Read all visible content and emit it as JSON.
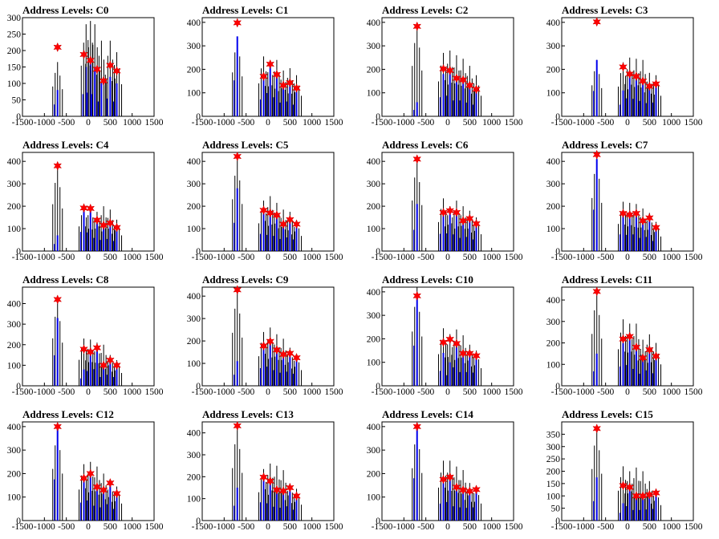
{
  "chart_data": [
    {
      "title": "Address Levels: C0",
      "type": "bar",
      "xlim": [
        -1500,
        1500
      ],
      "ylim": [
        0,
        300
      ],
      "yticks": [
        0,
        50,
        100,
        150,
        200,
        250,
        300
      ],
      "peaks": [
        [
          -700,
          210
        ],
        [
          -100,
          188
        ],
        [
          50,
          170
        ],
        [
          200,
          143
        ],
        [
          350,
          108
        ],
        [
          500,
          155
        ],
        [
          650,
          138
        ]
      ],
      "spikes": [
        [
          -700,
          165,
          80
        ],
        [
          -50,
          280,
          150
        ],
        [
          50,
          290,
          160
        ],
        [
          150,
          280,
          150
        ],
        [
          300,
          230,
          100
        ],
        [
          500,
          230,
          120
        ],
        [
          650,
          195,
          100
        ]
      ]
    },
    {
      "title": "Address Levels: C1",
      "type": "bar",
      "xlim": [
        -1500,
        1500
      ],
      "ylim": [
        0,
        420
      ],
      "yticks": [
        0,
        100,
        200,
        300,
        400
      ],
      "peaks": [
        [
          -700,
          398
        ],
        [
          -100,
          170
        ],
        [
          50,
          222
        ],
        [
          200,
          178
        ],
        [
          350,
          132
        ],
        [
          500,
          143
        ],
        [
          650,
          120
        ]
      ],
      "spikes": [
        [
          -700,
          340,
          340
        ],
        [
          -100,
          255,
          160
        ],
        [
          50,
          235,
          220
        ],
        [
          200,
          240,
          180
        ],
        [
          350,
          195,
          130
        ],
        [
          500,
          205,
          140
        ],
        [
          650,
          175,
          110
        ]
      ]
    },
    {
      "title": "Address Levels: C2",
      "type": "bar",
      "xlim": [
        -1500,
        1500
      ],
      "ylim": [
        0,
        420
      ],
      "yticks": [
        0,
        100,
        200,
        300,
        400
      ],
      "peaks": [
        [
          -700,
          383
        ],
        [
          -100,
          202
        ],
        [
          50,
          195
        ],
        [
          200,
          162
        ],
        [
          350,
          155
        ],
        [
          500,
          132
        ],
        [
          650,
          115
        ]
      ],
      "spikes": [
        [
          -700,
          390,
          60
        ],
        [
          -100,
          270,
          180
        ],
        [
          50,
          280,
          195
        ],
        [
          200,
          260,
          150
        ],
        [
          350,
          245,
          150
        ],
        [
          500,
          215,
          130
        ],
        [
          650,
          175,
          110
        ]
      ]
    },
    {
      "title": "Address Levels: C3",
      "type": "bar",
      "xlim": [
        -1500,
        1500
      ],
      "ylim": [
        0,
        420
      ],
      "yticks": [
        0,
        100,
        200,
        300,
        400
      ],
      "peaks": [
        [
          -700,
          402
        ],
        [
          -100,
          210
        ],
        [
          50,
          180
        ],
        [
          200,
          170
        ],
        [
          350,
          150
        ],
        [
          500,
          128
        ],
        [
          650,
          138
        ]
      ],
      "spikes": [
        [
          -700,
          240,
          240
        ],
        [
          -100,
          230,
          110
        ],
        [
          50,
          250,
          170
        ],
        [
          200,
          245,
          165
        ],
        [
          350,
          240,
          145
        ],
        [
          500,
          185,
          125
        ],
        [
          650,
          175,
          130
        ]
      ]
    },
    {
      "title": "Address Levels: C4",
      "type": "bar",
      "xlim": [
        -1500,
        1500
      ],
      "ylim": [
        0,
        440
      ],
      "yticks": [
        0,
        100,
        200,
        300,
        400
      ],
      "peaks": [
        [
          -700,
          380
        ],
        [
          -100,
          192
        ],
        [
          50,
          190
        ],
        [
          200,
          138
        ],
        [
          350,
          115
        ],
        [
          500,
          125
        ],
        [
          650,
          105
        ]
      ],
      "spikes": [
        [
          -700,
          380,
          70
        ],
        [
          -100,
          200,
          190
        ],
        [
          50,
          200,
          185
        ],
        [
          200,
          175,
          130
        ],
        [
          350,
          200,
          110
        ],
        [
          500,
          185,
          120
        ],
        [
          650,
          140,
          100
        ]
      ]
    },
    {
      "title": "Address Levels: C5",
      "type": "bar",
      "xlim": [
        -1500,
        1500
      ],
      "ylim": [
        0,
        440
      ],
      "yticks": [
        0,
        100,
        200,
        300,
        400
      ],
      "peaks": [
        [
          -700,
          422
        ],
        [
          -100,
          182
        ],
        [
          50,
          170
        ],
        [
          200,
          160
        ],
        [
          350,
          120
        ],
        [
          500,
          140
        ],
        [
          650,
          120
        ]
      ],
      "spikes": [
        [
          -700,
          420,
          280
        ],
        [
          -100,
          225,
          170
        ],
        [
          50,
          245,
          160
        ],
        [
          200,
          215,
          150
        ],
        [
          350,
          185,
          120
        ],
        [
          500,
          175,
          135
        ],
        [
          650,
          135,
          115
        ]
      ]
    },
    {
      "title": "Address Levels: C6",
      "type": "bar",
      "xlim": [
        -1500,
        1500
      ],
      "ylim": [
        0,
        440
      ],
      "yticks": [
        0,
        100,
        200,
        300,
        400
      ],
      "peaks": [
        [
          -700,
          410
        ],
        [
          -100,
          172
        ],
        [
          50,
          180
        ],
        [
          200,
          172
        ],
        [
          350,
          135
        ],
        [
          500,
          145
        ],
        [
          650,
          122
        ]
      ],
      "spikes": [
        [
          -700,
          410,
          210
        ],
        [
          -100,
          235,
          170
        ],
        [
          50,
          200,
          175
        ],
        [
          200,
          225,
          165
        ],
        [
          350,
          200,
          130
        ],
        [
          500,
          180,
          140
        ],
        [
          650,
          150,
          115
        ]
      ]
    },
    {
      "title": "Address Levels: C7",
      "type": "bar",
      "xlim": [
        -1500,
        1500
      ],
      "ylim": [
        0,
        440
      ],
      "yticks": [
        0,
        100,
        200,
        300,
        400
      ],
      "peaks": [
        [
          -700,
          430
        ],
        [
          -100,
          168
        ],
        [
          50,
          162
        ],
        [
          200,
          168
        ],
        [
          350,
          135
        ],
        [
          500,
          148
        ],
        [
          650,
          105
        ]
      ],
      "spikes": [
        [
          -700,
          430,
          410
        ],
        [
          -100,
          220,
          165
        ],
        [
          50,
          215,
          160
        ],
        [
          200,
          210,
          165
        ],
        [
          350,
          190,
          130
        ],
        [
          500,
          170,
          140
        ],
        [
          650,
          130,
          100
        ]
      ]
    },
    {
      "title": "Address Levels: C8",
      "type": "bar",
      "xlim": [
        -1500,
        1500
      ],
      "ylim": [
        0,
        480
      ],
      "yticks": [
        0,
        100,
        200,
        300,
        400
      ],
      "peaks": [
        [
          -700,
          420
        ],
        [
          -100,
          178
        ],
        [
          50,
          165
        ],
        [
          200,
          185
        ],
        [
          350,
          100
        ],
        [
          500,
          125
        ],
        [
          650,
          100
        ]
      ],
      "spikes": [
        [
          -700,
          420,
          330
        ],
        [
          -100,
          230,
          80
        ],
        [
          50,
          225,
          160
        ],
        [
          200,
          210,
          180
        ],
        [
          350,
          200,
          95
        ],
        [
          500,
          150,
          120
        ],
        [
          650,
          125,
          95
        ]
      ]
    },
    {
      "title": "Address Levels: C9",
      "type": "bar",
      "xlim": [
        -1500,
        1500
      ],
      "ylim": [
        0,
        440
      ],
      "yticks": [
        0,
        100,
        200,
        300,
        400
      ],
      "peaks": [
        [
          -700,
          428
        ],
        [
          -100,
          178
        ],
        [
          50,
          198
        ],
        [
          200,
          160
        ],
        [
          350,
          140
        ],
        [
          500,
          145
        ],
        [
          650,
          125
        ]
      ],
      "spikes": [
        [
          -700,
          430,
          110
        ],
        [
          -100,
          240,
          175
        ],
        [
          50,
          260,
          190
        ],
        [
          200,
          230,
          155
        ],
        [
          350,
          210,
          130
        ],
        [
          500,
          170,
          140
        ],
        [
          650,
          140,
          120
        ]
      ]
    },
    {
      "title": "Address Levels: C10",
      "type": "bar",
      "xlim": [
        -1500,
        1500
      ],
      "ylim": [
        0,
        420
      ],
      "yticks": [
        0,
        100,
        200,
        300,
        400
      ],
      "peaks": [
        [
          -700,
          383
        ],
        [
          -100,
          185
        ],
        [
          50,
          198
        ],
        [
          200,
          180
        ],
        [
          350,
          138
        ],
        [
          500,
          138
        ],
        [
          650,
          128
        ]
      ],
      "spikes": [
        [
          -700,
          420,
          380
        ],
        [
          -100,
          245,
          140
        ],
        [
          50,
          220,
          100
        ],
        [
          200,
          240,
          175
        ],
        [
          350,
          215,
          130
        ],
        [
          500,
          175,
          130
        ],
        [
          650,
          150,
          125
        ]
      ]
    },
    {
      "title": "Address Levels: C11",
      "type": "bar",
      "xlim": [
        -1500,
        1500
      ],
      "ylim": [
        0,
        460
      ],
      "yticks": [
        0,
        100,
        200,
        300,
        400
      ],
      "peaks": [
        [
          -700,
          440
        ],
        [
          -100,
          218
        ],
        [
          50,
          230
        ],
        [
          200,
          180
        ],
        [
          350,
          130
        ],
        [
          500,
          168
        ],
        [
          650,
          138
        ]
      ],
      "spikes": [
        [
          -700,
          440,
          150
        ],
        [
          -100,
          310,
          200
        ],
        [
          50,
          290,
          215
        ],
        [
          200,
          290,
          175
        ],
        [
          350,
          215,
          125
        ],
        [
          500,
          240,
          160
        ],
        [
          650,
          200,
          130
        ]
      ]
    },
    {
      "title": "Address Levels: C12",
      "type": "bar",
      "xlim": [
        -1500,
        1500
      ],
      "ylim": [
        0,
        420
      ],
      "yticks": [
        0,
        100,
        200,
        300,
        400
      ],
      "peaks": [
        [
          -700,
          400
        ],
        [
          -100,
          180
        ],
        [
          50,
          200
        ],
        [
          200,
          143
        ],
        [
          350,
          130
        ],
        [
          500,
          160
        ],
        [
          650,
          115
        ]
      ],
      "spikes": [
        [
          -700,
          400,
          390
        ],
        [
          -100,
          240,
          170
        ],
        [
          50,
          250,
          190
        ],
        [
          200,
          230,
          140
        ],
        [
          350,
          200,
          125
        ],
        [
          500,
          165,
          155
        ],
        [
          650,
          145,
          110
        ]
      ]
    },
    {
      "title": "Address Levels: C13",
      "type": "bar",
      "xlim": [
        -1500,
        1500
      ],
      "ylim": [
        0,
        450
      ],
      "yticks": [
        0,
        100,
        200,
        300,
        400
      ],
      "peaks": [
        [
          -700,
          432
        ],
        [
          -100,
          198
        ],
        [
          50,
          180
        ],
        [
          200,
          140
        ],
        [
          350,
          135
        ],
        [
          500,
          150
        ],
        [
          650,
          112
        ]
      ],
      "spikes": [
        [
          -700,
          435,
          150
        ],
        [
          -100,
          235,
          185
        ],
        [
          50,
          260,
          175
        ],
        [
          200,
          250,
          140
        ],
        [
          350,
          230,
          130
        ],
        [
          500,
          170,
          145
        ],
        [
          650,
          145,
          110
        ]
      ]
    },
    {
      "title": "Address Levels: C14",
      "type": "bar",
      "xlim": [
        -1500,
        1500
      ],
      "ylim": [
        0,
        420
      ],
      "yticks": [
        0,
        100,
        200,
        300,
        400
      ],
      "peaks": [
        [
          -700,
          400
        ],
        [
          -100,
          175
        ],
        [
          50,
          185
        ],
        [
          200,
          142
        ],
        [
          350,
          130
        ],
        [
          500,
          125
        ],
        [
          650,
          132
        ]
      ],
      "spikes": [
        [
          -700,
          405,
          400
        ],
        [
          -100,
          255,
          160
        ],
        [
          50,
          255,
          175
        ],
        [
          200,
          230,
          135
        ],
        [
          350,
          215,
          125
        ],
        [
          500,
          160,
          120
        ],
        [
          650,
          145,
          125
        ]
      ]
    },
    {
      "title": "Address Levels: C15",
      "type": "bar",
      "xlim": [
        -1500,
        1500
      ],
      "ylim": [
        0,
        400
      ],
      "yticks": [
        0,
        50,
        100,
        150,
        200,
        250,
        300,
        350
      ],
      "peaks": [
        [
          -700,
          373
        ],
        [
          -100,
          142
        ],
        [
          50,
          135
        ],
        [
          200,
          100
        ],
        [
          350,
          100
        ],
        [
          500,
          105
        ],
        [
          650,
          112
        ]
      ],
      "spikes": [
        [
          -700,
          380,
          175
        ],
        [
          -100,
          220,
          70
        ],
        [
          50,
          200,
          130
        ],
        [
          200,
          215,
          95
        ],
        [
          350,
          200,
          95
        ],
        [
          500,
          160,
          100
        ],
        [
          650,
          125,
          105
        ]
      ]
    }
  ]
}
